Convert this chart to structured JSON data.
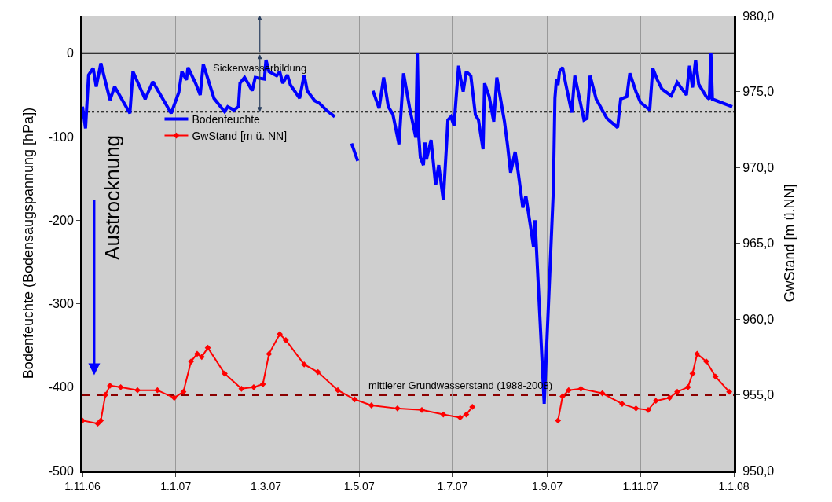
{
  "chart_data": {
    "type": "line",
    "xlabel": null,
    "ylabel": "Bodenfeuchte (Bodensaugspannung [hPa])",
    "y2label": "GwStand [m ü.NN]",
    "xlim": [
      "2006-11-01",
      "2008-01-01"
    ],
    "xticks": [
      {
        "value": "2006-11-01",
        "label": "1.11.06"
      },
      {
        "value": "2007-01-01",
        "label": "1.1.07"
      },
      {
        "value": "2007-03-01",
        "label": "1.3.07"
      },
      {
        "value": "2007-05-01",
        "label": "1.5.07"
      },
      {
        "value": "2007-07-01",
        "label": "1.7.07"
      },
      {
        "value": "2007-09-01",
        "label": "1.9.07"
      },
      {
        "value": "2007-11-01",
        "label": "1.11.07"
      },
      {
        "value": "2008-01-01",
        "label": "1.1.08"
      }
    ],
    "ylim": [
      -500,
      45
    ],
    "yticks": [
      -500,
      -400,
      -300,
      -200,
      -100,
      0
    ],
    "y2lim": [
      950,
      980
    ],
    "y2ticks": [
      {
        "value": 950,
        "label": "950,0"
      },
      {
        "value": 955,
        "label": "955,0"
      },
      {
        "value": 960,
        "label": "960,0"
      },
      {
        "value": 965,
        "label": "965,0"
      },
      {
        "value": 970,
        "label": "970,0"
      },
      {
        "value": 975,
        "label": "975,0"
      },
      {
        "value": 980,
        "label": "980,0"
      }
    ],
    "grid": "x",
    "legend": "top left",
    "series": [
      {
        "name": "Bodenfeuchte",
        "color": "#0000ff",
        "marker": "none",
        "x": [
          "2006-11-01",
          "2006-11-03",
          "2006-11-05",
          "2006-11-08",
          "2006-11-10",
          "2006-11-13",
          "2006-11-19",
          "2006-11-22",
          "2006-12-02",
          "2006-12-04",
          "2006-12-12",
          "2006-12-17",
          "2006-12-29",
          "2007-01-03",
          "2007-01-05",
          "2007-01-08",
          "2007-01-09",
          "2007-01-14",
          "2007-01-17",
          "2007-01-19",
          "2007-01-26",
          "2007-02-02",
          "2007-02-04",
          "2007-02-08",
          "2007-02-11",
          "2007-02-12",
          "2007-02-15",
          "2007-02-20",
          "2007-02-22",
          "2007-02-28",
          "2007-03-01",
          "2007-03-03",
          "2007-03-08",
          "2007-03-10",
          "2007-03-12",
          "2007-03-15",
          "2007-03-17",
          "2007-03-23",
          "2007-03-26",
          "2007-03-28",
          "2007-04-02",
          "2007-04-05",
          "2007-04-10",
          "2007-04-15",
          "2007-04-20",
          "2007-04-26",
          "2007-04-30",
          "2007-05-05",
          "2007-05-10",
          "2007-05-14",
          "2007-05-17",
          "2007-05-20",
          "2007-05-23",
          "2007-05-27",
          "2007-05-30",
          "2007-06-03",
          "2007-06-07",
          "2007-06-08",
          "2007-06-09",
          "2007-06-10",
          "2007-06-12",
          "2007-06-13",
          "2007-06-14",
          "2007-06-17",
          "2007-06-20",
          "2007-06-22",
          "2007-06-25",
          "2007-06-27",
          "2007-06-28",
          "2007-06-30",
          "2007-07-02",
          "2007-07-05",
          "2007-07-06",
          "2007-07-08",
          "2007-07-10",
          "2007-07-13",
          "2007-07-16",
          "2007-07-18",
          "2007-07-21",
          "2007-07-22",
          "2007-07-25",
          "2007-07-28",
          "2007-07-30",
          "2007-08-04",
          "2007-08-06",
          "2007-08-08",
          "2007-08-11",
          "2007-08-13",
          "2007-08-16",
          "2007-08-18",
          "2007-08-21",
          "2007-08-23",
          "2007-08-24",
          "2007-08-30",
          "2007-09-05",
          "2007-09-06",
          "2007-09-07",
          "2007-09-08",
          "2007-09-09",
          "2007-09-11",
          "2007-09-13",
          "2007-09-17",
          "2007-09-19",
          "2007-09-25",
          "2007-09-27",
          "2007-09-29",
          "2007-10-03",
          "2007-10-10",
          "2007-10-17",
          "2007-10-19",
          "2007-10-23",
          "2007-10-25",
          "2007-10-29",
          "2007-11-01",
          "2007-11-07",
          "2007-11-09",
          "2007-11-12",
          "2007-11-15",
          "2007-11-21",
          "2007-11-25",
          "2007-12-01",
          "2007-12-03",
          "2007-12-05",
          "2007-12-07",
          "2007-12-09",
          "2007-12-14",
          "2007-12-16",
          "2007-12-17",
          "2007-12-18",
          "2007-12-31"
        ],
        "values": [
          -64,
          -90,
          -26,
          -18,
          -40,
          -12,
          -56,
          -40,
          -72,
          -22,
          -55,
          -34,
          -72,
          -47,
          -22,
          -32,
          -17,
          -36,
          -50,
          -13,
          -54,
          -70,
          -64,
          -68,
          -64,
          -36,
          -29,
          -45,
          -29,
          -31,
          -8,
          -22,
          -27,
          -22,
          -36,
          -26,
          -38,
          -54,
          -26,
          -45,
          -57,
          -60,
          -69,
          -76,
          null,
          -108,
          -129,
          null,
          -45,
          -66,
          -29,
          -64,
          -73,
          -109,
          -24,
          -66,
          -101,
          0,
          -101,
          -125,
          -134,
          -107,
          -127,
          -104,
          -158,
          -134,
          -176,
          -113,
          -80,
          -76,
          -87,
          -15,
          -27,
          -46,
          -22,
          -27,
          -74,
          -80,
          -115,
          -36,
          -52,
          -82,
          -29,
          -82,
          -110,
          -143,
          -118,
          -143,
          -185,
          -171,
          -207,
          -232,
          -200,
          -420,
          -163,
          -54,
          -31,
          -38,
          -22,
          -17,
          -36,
          -71,
          -27,
          -80,
          -78,
          -27,
          -55,
          -78,
          -89,
          -55,
          -52,
          -24,
          -46,
          -59,
          -68,
          -18,
          -32,
          -43,
          -51,
          -35,
          -50,
          -15,
          -41,
          -8,
          -37,
          -52,
          -55,
          0,
          -55,
          -64
        ]
      },
      {
        "name": "GwStand [m ü. NN]",
        "color": "#ff0000",
        "marker": "diamond",
        "axis": "y2",
        "x": [
          "2006-11-01",
          "2006-11-11",
          "2006-11-13",
          "2006-11-16",
          "2006-11-19",
          "2006-11-26",
          "2006-12-07",
          "2006-12-20",
          "2006-12-31",
          "2007-01-06",
          "2007-01-11",
          "2007-01-15",
          "2007-01-18",
          "2007-01-22",
          "2007-02-02",
          "2007-02-13",
          "2007-02-21",
          "2007-02-27",
          "2007-03-03",
          "2007-03-10",
          "2007-03-14",
          "2007-03-26",
          "2007-04-04",
          "2007-04-17",
          "2007-04-28",
          "2007-05-09",
          "2007-05-26",
          "2007-06-11",
          "2007-06-25",
          "2007-07-06",
          "2007-07-10",
          "2007-07-14",
          "2007-08-10",
          "2007-09-08",
          "2007-09-11",
          "2007-09-15",
          "2007-09-23",
          "2007-10-07",
          "2007-10-20",
          "2007-10-29",
          "2007-11-06",
          "2007-11-11",
          "2007-11-20",
          "2007-11-25",
          "2007-12-02",
          "2007-12-05",
          "2007-12-08",
          "2007-12-14",
          "2007-12-20",
          "2007-12-29"
        ],
        "values": [
          953.3,
          953.1,
          953.3,
          955.0,
          955.6,
          955.5,
          955.3,
          955.3,
          954.8,
          955.2,
          957.2,
          957.7,
          957.5,
          958.1,
          956.4,
          955.4,
          955.5,
          955.7,
          957.7,
          959.0,
          958.6,
          957.0,
          956.5,
          955.3,
          954.7,
          954.3,
          954.1,
          954.0,
          953.7,
          953.5,
          953.7,
          954.2,
          null,
          953.3,
          954.9,
          955.3,
          955.4,
          955.1,
          954.4,
          954.1,
          954.0,
          954.6,
          954.8,
          955.2,
          955.5,
          956.4,
          957.7,
          957.2,
          956.2,
          955.2
        ]
      }
    ],
    "ref_lines": [
      {
        "axis": "y",
        "value": 0,
        "label": null,
        "color": "#000000",
        "line_style": "solid"
      },
      {
        "axis": "y",
        "value": -70,
        "label": null,
        "color": "#000000",
        "line_style": "dotted"
      },
      {
        "axis": "y2",
        "value": 955,
        "label": "mittlerer Grundwasserstand (1988-2008)",
        "color": "#8b0000",
        "line_style": "dashed"
      }
    ],
    "annotations": [
      {
        "text": "Sickerwasserbildung",
        "x": "2007-02-25",
        "y": -18
      },
      "Austrocknung"
    ]
  }
}
